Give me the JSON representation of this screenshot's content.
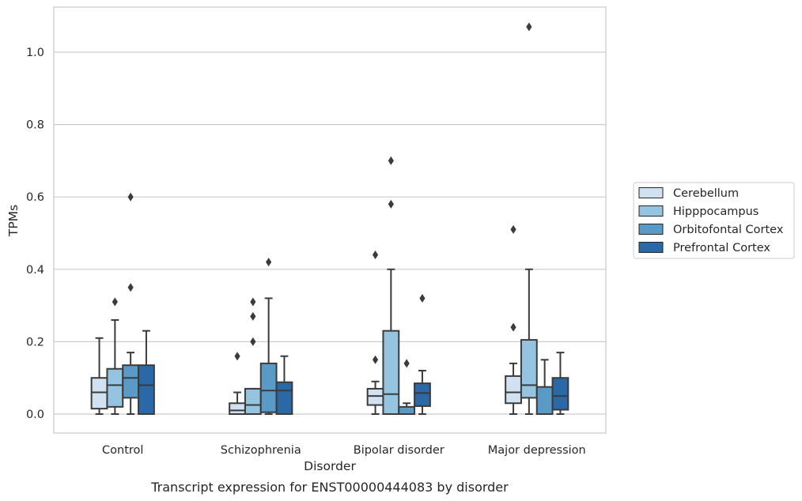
{
  "caption": "Transcript expression for ENST00000444083 by disorder",
  "chart_data": {
    "type": "box",
    "title": "",
    "xlabel": "Disorder",
    "ylabel": "TPMs",
    "ylim": [
      -0.05,
      1.13
    ],
    "yticks": [
      0.0,
      0.2,
      0.4,
      0.6,
      0.8,
      1.0
    ],
    "ytick_labels": [
      "0.0",
      "0.2",
      "0.4",
      "0.6",
      "0.8",
      "1.0"
    ],
    "grid": "horizontal",
    "legend_position": "right",
    "categories": [
      "Control",
      "Schizophrenia",
      "Bipolar disorder",
      "Major depression"
    ],
    "series": [
      {
        "name": "Cerebellum",
        "color": "#d0e1f2",
        "boxes": [
          {
            "min": 0.0,
            "q1": 0.015,
            "median": 0.06,
            "q3": 0.1,
            "max": 0.21,
            "outliers": []
          },
          {
            "min": 0.0,
            "q1": 0.0,
            "median": 0.01,
            "q3": 0.03,
            "max": 0.06,
            "outliers": [
              0.16
            ]
          },
          {
            "min": 0.0,
            "q1": 0.025,
            "median": 0.05,
            "q3": 0.07,
            "max": 0.09,
            "outliers": [
              0.15,
              0.44
            ]
          },
          {
            "min": 0.0,
            "q1": 0.03,
            "median": 0.06,
            "q3": 0.105,
            "max": 0.14,
            "outliers": [
              0.24,
              0.51
            ]
          }
        ]
      },
      {
        "name": "Hipppocampus",
        "color": "#94c4df",
        "boxes": [
          {
            "min": 0.0,
            "q1": 0.02,
            "median": 0.08,
            "q3": 0.125,
            "max": 0.26,
            "outliers": [
              0.31
            ]
          },
          {
            "min": 0.0,
            "q1": 0.0,
            "median": 0.025,
            "q3": 0.07,
            "max": 0.07,
            "outliers": [
              0.2,
              0.27,
              0.31
            ]
          },
          {
            "min": 0.0,
            "q1": 0.0,
            "median": 0.055,
            "q3": 0.23,
            "max": 0.4,
            "outliers": [
              0.58,
              0.7
            ]
          },
          {
            "min": 0.0,
            "q1": 0.045,
            "median": 0.08,
            "q3": 0.205,
            "max": 0.4,
            "outliers": [
              1.07
            ]
          }
        ]
      },
      {
        "name": "Orbitofontal Cortex",
        "color": "#5a9ac7",
        "boxes": [
          {
            "min": 0.0,
            "q1": 0.045,
            "median": 0.1,
            "q3": 0.135,
            "max": 0.17,
            "outliers": [
              0.35,
              0.6
            ]
          },
          {
            "min": 0.0,
            "q1": 0.005,
            "median": 0.065,
            "q3": 0.14,
            "max": 0.32,
            "outliers": [
              0.42
            ]
          },
          {
            "min": 0.0,
            "q1": 0.0,
            "median": 0.0,
            "q3": 0.02,
            "max": 0.03,
            "outliers": [
              0.14
            ]
          },
          {
            "min": 0.0,
            "q1": 0.0,
            "median": 0.0,
            "q3": 0.075,
            "max": 0.15,
            "outliers": []
          }
        ]
      },
      {
        "name": "Prefrontal Cortex",
        "color": "#2a68a6",
        "boxes": [
          {
            "min": 0.0,
            "q1": 0.0,
            "median": 0.08,
            "q3": 0.135,
            "max": 0.23,
            "outliers": []
          },
          {
            "min": 0.0,
            "q1": 0.0,
            "median": 0.065,
            "q3": 0.088,
            "max": 0.16,
            "outliers": []
          },
          {
            "min": 0.0,
            "q1": 0.022,
            "median": 0.058,
            "q3": 0.085,
            "max": 0.12,
            "outliers": [
              0.32
            ]
          },
          {
            "min": 0.0,
            "q1": 0.012,
            "median": 0.05,
            "q3": 0.1,
            "max": 0.17,
            "outliers": []
          }
        ]
      }
    ]
  }
}
